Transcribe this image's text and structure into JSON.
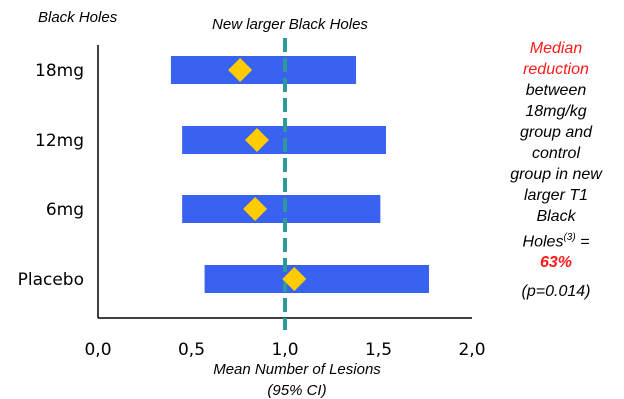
{
  "chart_data": {
    "type": "forest",
    "corner_label": "Black Holes",
    "title": "New larger Black Holes",
    "xlabel_line1": "Mean Number of Lesions",
    "xlabel_line2": "(95% CI)",
    "xlim": [
      0.0,
      2.0
    ],
    "x_ticks": [
      "0,0",
      "0,5",
      "1,0",
      "1,5",
      "2,0"
    ],
    "x_tick_values": [
      0.0,
      0.5,
      1.0,
      1.5,
      2.0
    ],
    "reference_line_x": 1.0,
    "categories": [
      "18mg",
      "12mg",
      "6mg",
      "Placebo"
    ],
    "ci_low": [
      0.39,
      0.45,
      0.45,
      0.57
    ],
    "ci_high": [
      1.38,
      1.54,
      1.51,
      1.77
    ],
    "point": [
      0.76,
      0.85,
      0.84,
      1.05
    ],
    "bar_color": "#3a62f0",
    "point_color": "#ffcc00",
    "reference_line_color": "#2e9999"
  },
  "note": {
    "line1": "Median",
    "line2": "reduction",
    "line3": "between",
    "line4": "18mg/kg",
    "line5": "group and",
    "line6": "control",
    "line7": "group in new",
    "line8": "larger T1",
    "line9": "Black",
    "line10": "Holes",
    "sup": "(3)",
    "eq": " =",
    "value": "63%",
    "pvalue": "(p=0.014)"
  }
}
